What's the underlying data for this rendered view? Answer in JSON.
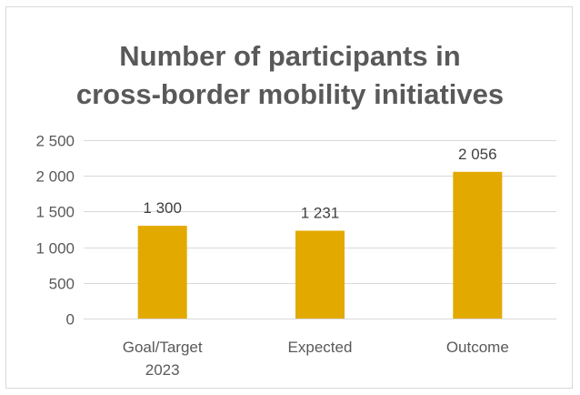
{
  "chart_data": {
    "type": "bar",
    "title": [
      "Number of participants in",
      "cross-border mobility initiatives"
    ],
    "categories": [
      [
        "Goal/Target",
        "2023"
      ],
      [
        "Expected"
      ],
      [
        "Outcome"
      ]
    ],
    "values": [
      1300,
      1231,
      2056
    ],
    "data_labels": [
      "1 300",
      "1 231",
      "2 056"
    ],
    "y_ticks": [
      0,
      500,
      1000,
      1500,
      2000,
      2500
    ],
    "y_tick_labels": [
      "0",
      "500",
      "1 000",
      "1 500",
      "2 000",
      "2 500"
    ],
    "ylim": [
      0,
      2500
    ],
    "xlabel": "",
    "ylabel": "",
    "grid": true,
    "legend": "none",
    "bar_color": "#E2A900",
    "grid_color": "#d9d9d9",
    "text_color": "#595959"
  }
}
